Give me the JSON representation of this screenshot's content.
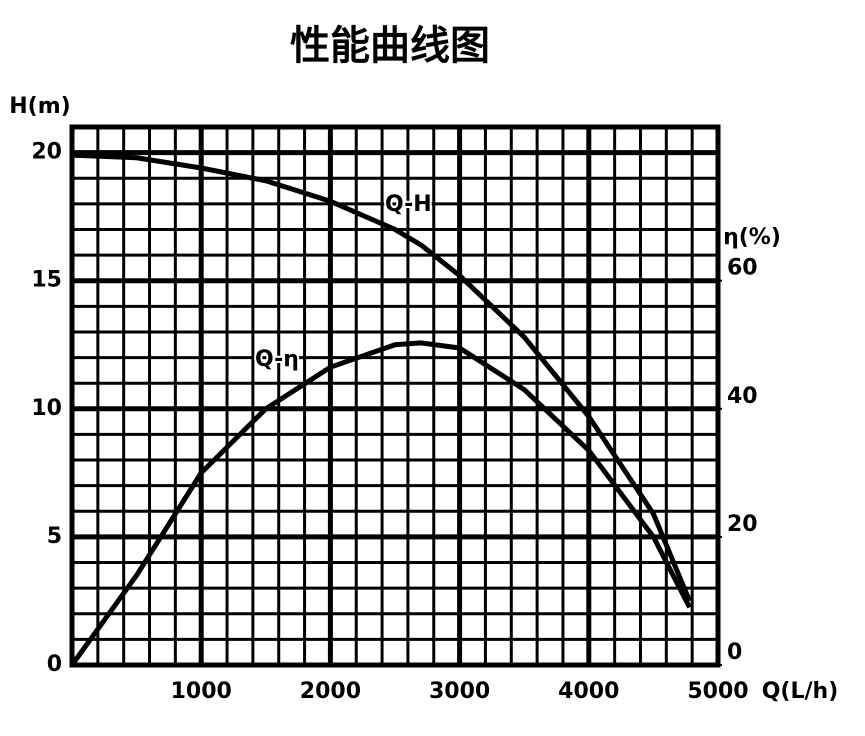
{
  "chart_data": {
    "type": "line",
    "title": "性能曲线图",
    "x_label": "Q(L/h)",
    "y_label": "H(m)",
    "y2_label": "η(%)",
    "x": [
      0,
      500,
      1000,
      1500,
      2000,
      2500,
      2700,
      3000,
      3500,
      4000,
      4500,
      4780
    ],
    "series": [
      {
        "name": "Q-H",
        "color": "#000000",
        "values": [
          19.9,
          19.8,
          19.4,
          18.9,
          18.1,
          17.0,
          16.4,
          15.2,
          12.8,
          9.7,
          5.9,
          2.5
        ]
      },
      {
        "name": "Q-η",
        "color": "#000000",
        "axis": "y2",
        "values": [
          0,
          14,
          30,
          40,
          46.5,
          50,
          50.3,
          49.5,
          43,
          33.5,
          20,
          9
        ]
      }
    ],
    "xlim": [
      0,
      5000
    ],
    "xticks": [
      1000,
      2000,
      3000,
      4000,
      5000
    ],
    "ylim": [
      0,
      21
    ],
    "yticks": [
      0,
      5,
      10,
      15,
      20
    ],
    "y2lim": [
      0,
      84
    ],
    "y2ticks": [
      0,
      20,
      40,
      60
    ],
    "grid": true
  }
}
